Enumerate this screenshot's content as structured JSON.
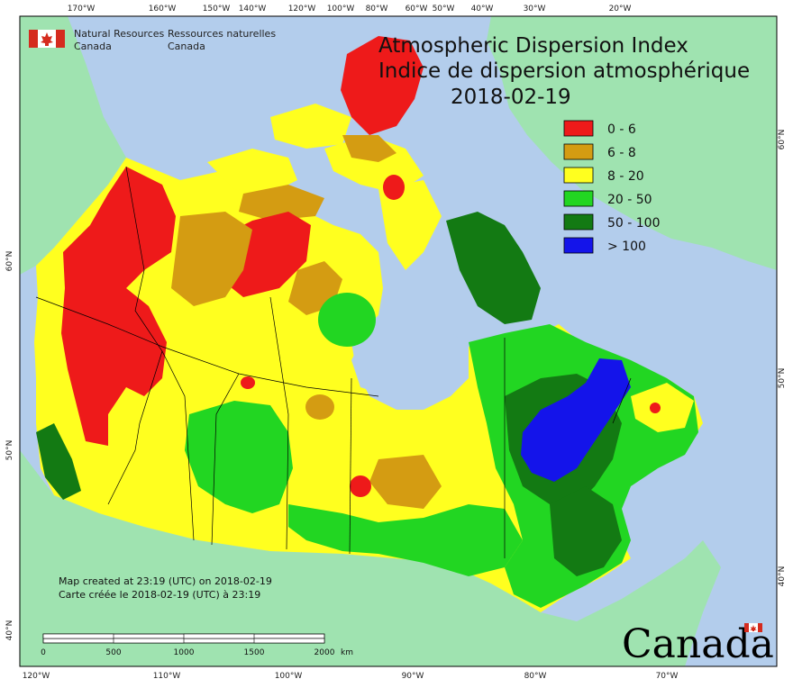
{
  "agency": {
    "name_en_1": "Natural Resources",
    "name_en_2": "Canada",
    "name_fr_1": "Ressources naturelles",
    "name_fr_2": "Canada"
  },
  "title": {
    "line1": "Atmospheric Dispersion Index",
    "line2": "Indice de dispersion atmosphérique",
    "date": "2018-02-19"
  },
  "legend": [
    {
      "label": "0 - 6",
      "color": "#ee1a1a"
    },
    {
      "label": "6 - 8",
      "color": "#d49c12"
    },
    {
      "label": "8 - 20",
      "color": "#ffff1f"
    },
    {
      "label": "20 - 50",
      "color": "#22d622"
    },
    {
      "label": "50 - 100",
      "color": "#137a13"
    },
    {
      "label": "> 100",
      "color": "#1414ea"
    }
  ],
  "top_ticks": [
    "170°W",
    "160°W",
    "150°W",
    "140°W",
    "120°W",
    "100°W",
    "80°W",
    "60°W",
    "50°W",
    "40°W",
    "30°W",
    "20°W"
  ],
  "bottom_ticks": [
    "120°W",
    "110°W",
    "100°W",
    "90°W",
    "80°W",
    "70°W"
  ],
  "left_ticks": [
    "60°N",
    "50°N",
    "40°N"
  ],
  "right_ticks": [
    "60°N",
    "50°N",
    "40°N"
  ],
  "scale": {
    "labels": [
      "0",
      "500",
      "1000",
      "1500",
      "2000"
    ],
    "unit": "km"
  },
  "footnote": {
    "line1": "Map created at 23:19 (UTC) on 2018-02-19",
    "line2": "Carte créée le 2018-02-19 (UTC) à 23:19"
  },
  "wordmark": "Canada",
  "colors": {
    "ocean": "#b3cdec",
    "land": "#9fe3b0",
    "border": "#000000"
  }
}
